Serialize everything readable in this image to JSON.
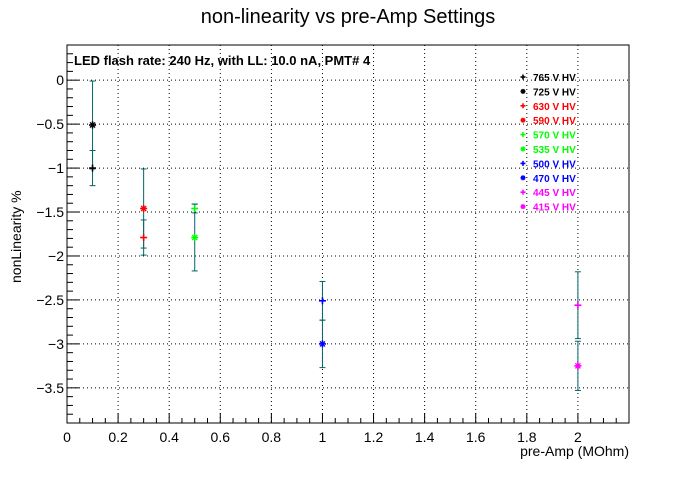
{
  "chart_data": {
    "type": "scatter",
    "title": "non-linearity vs pre-Amp Settings",
    "subtitle": "LED flash rate: 240 Hz, with LL: 10.0 nA, PMT# 4",
    "xlabel": "pre-Amp (MOhm)",
    "ylabel": "nonLinearity %",
    "xlim": [
      0,
      2.2
    ],
    "ylim": [
      -3.9,
      0.4
    ],
    "x_ticks": [
      "0",
      "0.2",
      "0.4",
      "0.6",
      "0.8",
      "1",
      "1.2",
      "1.4",
      "1.6",
      "1.8",
      "2"
    ],
    "y_ticks": [
      "0",
      "−0.5",
      "−1",
      "−1.5",
      "−2",
      "−2.5",
      "−3",
      "−3.5"
    ],
    "grid": true,
    "legend_position": "top-right",
    "series": [
      {
        "name": "765 V HV",
        "marker": "+",
        "color": "#000000",
        "points": [
          {
            "x": 0.1,
            "y": -1.0,
            "err": 0.2
          }
        ]
      },
      {
        "name": "725 V HV",
        "marker": "*",
        "color": "#000000",
        "points": [
          {
            "x": 0.1,
            "y": -0.51,
            "err": 0.5
          }
        ]
      },
      {
        "name": "630 V HV",
        "marker": "+",
        "color": "#ff0000",
        "points": [
          {
            "x": 0.3,
            "y": -1.79,
            "err": 0.2
          }
        ]
      },
      {
        "name": "590 V HV",
        "marker": "*",
        "color": "#ff0000",
        "points": [
          {
            "x": 0.3,
            "y": -1.46,
            "err": 0.45
          }
        ]
      },
      {
        "name": "570 V HV",
        "marker": "+",
        "color": "#00ff00",
        "points": [
          {
            "x": 0.5,
            "y": -1.46,
            "err": 0.05
          }
        ]
      },
      {
        "name": "535 V HV",
        "marker": "*",
        "color": "#00ff00",
        "points": [
          {
            "x": 0.5,
            "y": -1.79,
            "err": 0.38
          }
        ]
      },
      {
        "name": "500 V HV",
        "marker": "+",
        "color": "#0000ff",
        "points": [
          {
            "x": 1.0,
            "y": -2.51,
            "err": 0.22
          }
        ]
      },
      {
        "name": "470 V HV",
        "marker": "*",
        "color": "#0000ff",
        "points": [
          {
            "x": 1.0,
            "y": -3.0,
            "err": 0.27
          }
        ]
      },
      {
        "name": "445 V HV",
        "marker": "+",
        "color": "#ff00ff",
        "points": [
          {
            "x": 2.0,
            "y": -2.56,
            "err": 0.38
          }
        ]
      },
      {
        "name": "415 V HV",
        "marker": "*",
        "color": "#ff00ff",
        "points": [
          {
            "x": 2.0,
            "y": -3.25,
            "err": 0.28
          }
        ]
      }
    ],
    "error_bar_color": "#006666"
  }
}
